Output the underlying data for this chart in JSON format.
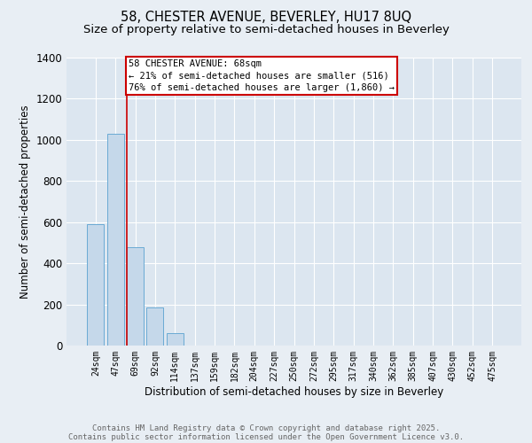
{
  "title_line1": "58, CHESTER AVENUE, BEVERLEY, HU17 8UQ",
  "title_line2": "Size of property relative to semi-detached houses in Beverley",
  "xlabel": "Distribution of semi-detached houses by size in Beverley",
  "ylabel": "Number of semi-detached properties",
  "categories": [
    "24sqm",
    "47sqm",
    "69sqm",
    "92sqm",
    "114sqm",
    "137sqm",
    "159sqm",
    "182sqm",
    "204sqm",
    "227sqm",
    "250sqm",
    "272sqm",
    "295sqm",
    "317sqm",
    "340sqm",
    "362sqm",
    "385sqm",
    "407sqm",
    "430sqm",
    "452sqm",
    "475sqm"
  ],
  "values": [
    590,
    1030,
    480,
    185,
    60,
    0,
    0,
    0,
    0,
    0,
    0,
    0,
    0,
    0,
    0,
    0,
    0,
    0,
    0,
    0,
    0
  ],
  "bar_color": "#c5d8ea",
  "bar_edge_color": "#6aaad4",
  "annotation_text_line1": "58 CHESTER AVENUE: 68sqm",
  "annotation_text_line2": "← 21% of semi-detached houses are smaller (516)",
  "annotation_text_line3": "76% of semi-detached houses are larger (1,860) →",
  "annotation_box_color": "#ffffff",
  "annotation_box_edge": "#cc0000",
  "vline_color": "#cc0000",
  "ylim": [
    0,
    1400
  ],
  "background_color": "#e8eef4",
  "plot_bg_color": "#dce6f0",
  "footer_line1": "Contains HM Land Registry data © Crown copyright and database right 2025.",
  "footer_line2": "Contains public sector information licensed under the Open Government Licence v3.0.",
  "grid_color": "#ffffff",
  "title_fontsize": 10.5,
  "subtitle_fontsize": 9.5,
  "tick_fontsize": 7,
  "ylabel_fontsize": 8.5,
  "xlabel_fontsize": 8.5,
  "annotation_fontsize": 7.5,
  "footer_fontsize": 6.5
}
